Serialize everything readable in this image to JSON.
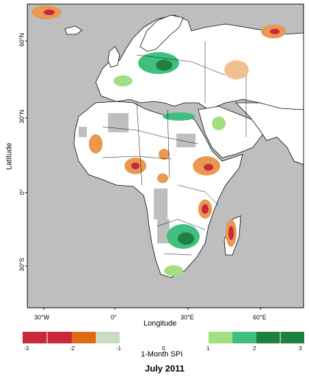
{
  "map": {
    "lon_labels": [
      "30°W",
      "0°",
      "30°E",
      "60°E"
    ],
    "lat_labels": [
      "60°N",
      "30°N",
      "0°",
      "30°S"
    ],
    "xlabel": "Longitude",
    "ylabel": "Latitude"
  },
  "legend": {
    "title": "1-Month SPI",
    "labels": [
      "-3",
      "-2",
      "-1",
      "0",
      "1",
      "2",
      "3"
    ],
    "colors": {
      "extreme_dry": "#c8283c",
      "severe_dry": "#e06a10",
      "moderate_dry": "#c8dcc4",
      "moderate_wet": "#a0e080",
      "very_wet": "#40c080",
      "extreme_wet": "#208040"
    }
  },
  "caption": "July 2011",
  "colors": {
    "no_data": "#bebebe",
    "ocean": "#bebebe",
    "land": "#ffffff"
  }
}
